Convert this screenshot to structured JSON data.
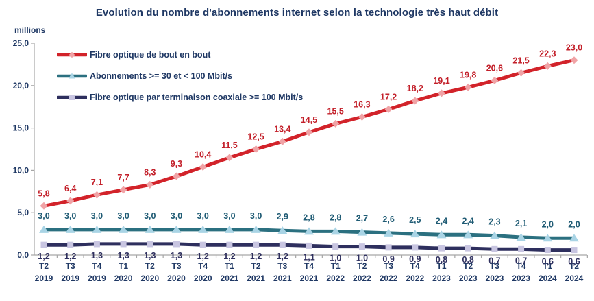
{
  "colors": {
    "title_text": "#1F3864",
    "axis_text": "#1F3864",
    "axis_line": "#A6A6A6"
  },
  "chart_data": {
    "type": "line",
    "title": "Evolution du nombre d'abonnements internet selon la technologie très haut débit",
    "ylabel": "millions",
    "xlabel": "",
    "ylim": [
      0,
      25
    ],
    "grid": false,
    "legend_position": "top-left",
    "ytick_values": [
      25,
      20,
      15,
      10,
      5,
      0
    ],
    "ytick_labels": [
      "25,0",
      "20,0",
      "15,0",
      "10,0",
      "5,0",
      "0,0"
    ],
    "categories": [
      {
        "q": "T2",
        "y": "2019"
      },
      {
        "q": "T3",
        "y": "2019"
      },
      {
        "q": "T4",
        "y": "2019"
      },
      {
        "q": "T1",
        "y": "2020"
      },
      {
        "q": "T2",
        "y": "2020"
      },
      {
        "q": "T3",
        "y": "2020"
      },
      {
        "q": "T4",
        "y": "2020"
      },
      {
        "q": "T1",
        "y": "2021"
      },
      {
        "q": "T2",
        "y": "2021"
      },
      {
        "q": "T3",
        "y": "2021"
      },
      {
        "q": "T4",
        "y": "2021"
      },
      {
        "q": "T1",
        "y": "2022"
      },
      {
        "q": "T2",
        "y": "2022"
      },
      {
        "q": "T3",
        "y": "2022"
      },
      {
        "q": "T4",
        "y": "2022"
      },
      {
        "q": "T1",
        "y": "2023"
      },
      {
        "q": "T2",
        "y": "2023"
      },
      {
        "q": "T3",
        "y": "2023"
      },
      {
        "q": "T4",
        "y": "2023"
      },
      {
        "q": "T1",
        "y": "2024"
      },
      {
        "q": "T2",
        "y": "2024"
      }
    ],
    "series": [
      {
        "name": "Fibre optique de bout en bout",
        "line_color": "#D2232A",
        "marker": "diamond",
        "marker_color": "#F0A3A6",
        "label_color": "#C3202A",
        "label_dy": -14,
        "values": [
          5.8,
          6.4,
          7.1,
          7.7,
          8.3,
          9.3,
          10.4,
          11.5,
          12.5,
          13.4,
          14.5,
          15.5,
          16.3,
          17.2,
          18.2,
          19.1,
          19.8,
          20.6,
          21.5,
          22.3,
          23.0
        ]
      },
      {
        "name": "Abonnements >= 30 et < 100 Mbit/s",
        "line_color": "#2B7080",
        "marker": "triangle",
        "marker_color": "#A9D4E5",
        "label_color": "#1F5B74",
        "label_dy": -16,
        "values": [
          3.0,
          3.0,
          3.0,
          3.0,
          3.0,
          3.0,
          3.0,
          3.0,
          3.0,
          2.9,
          2.8,
          2.8,
          2.7,
          2.6,
          2.5,
          2.4,
          2.4,
          2.3,
          2.1,
          2.0,
          2.0
        ]
      },
      {
        "name": "Fibre optique par terminaison coaxiale >= 100 Mbit/s",
        "line_color": "#2E2F5E",
        "marker": "square",
        "marker_color": "#C8C5E1",
        "label_color": "#2E2F5E",
        "label_dy": 21,
        "values": [
          1.2,
          1.2,
          1.3,
          1.3,
          1.3,
          1.3,
          1.2,
          1.2,
          1.2,
          1.2,
          1.1,
          1.0,
          1.0,
          0.9,
          0.9,
          0.8,
          0.8,
          0.7,
          0.7,
          0.6,
          0.6
        ]
      }
    ]
  }
}
